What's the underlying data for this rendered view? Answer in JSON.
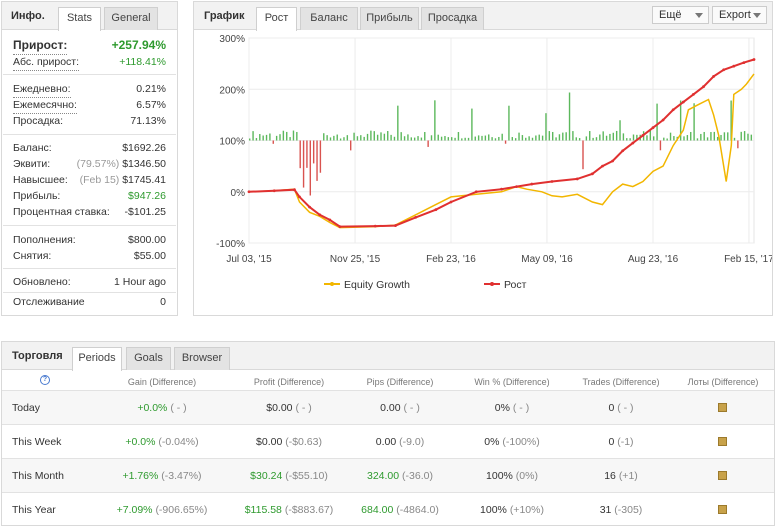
{
  "info": {
    "title": "Инфо.",
    "tabs": [
      "Stats",
      "General"
    ],
    "growth_label": "Прирост:",
    "growth_value": "+257.94%",
    "abs_label": "Абс. прирост:",
    "abs_value": "+118.41%",
    "daily_label": "Ежедневно:",
    "daily_value": "0.21%",
    "monthly_label": "Ежемесячно:",
    "monthly_value": "6.57%",
    "drawdown_label": "Просадка:",
    "drawdown_value": "71.13%",
    "balance_label": "Баланс:",
    "balance_value": "$1692.26",
    "equity_label": "Эквити:",
    "equity_pct": "(79.57%)",
    "equity_value": "$1346.50",
    "highest_label": "Навысшее:",
    "highest_date": "(Feb 15)",
    "highest_value": "$1745.41",
    "profit_label": "Прибыль:",
    "profit_value": "$947.26",
    "interest_label": "Процентная ставка:",
    "interest_value": "-$101.25",
    "deposits_label": "Пополнения:",
    "deposits_value": "$800.00",
    "withdrawals_label": "Снятия:",
    "withdrawals_value": "$55.00",
    "updated_label": "Обновлено:",
    "updated_value": "1 Hour ago",
    "tracking_label": "Отслеживание",
    "tracking_value": "0"
  },
  "chart_panel": {
    "title": "График",
    "tabs": [
      "Рост",
      "Баланс",
      "Прибыль",
      "Просадка"
    ],
    "more_btn": "Ещё",
    "export_btn": "Export"
  },
  "chart_data": {
    "type": "line",
    "yticks": [
      "300%",
      "200%",
      "100%",
      "0%",
      "-100%"
    ],
    "xticks": [
      "Jul 03, '15",
      "Nov 25, '15",
      "Feb 23, '16",
      "May 09, '16",
      "Aug 23, '16",
      "Feb 15, '17"
    ],
    "ylim": [
      -100,
      300
    ],
    "legend": "bottom",
    "colors": {
      "equity": "#f2b600",
      "growth": "#e03030",
      "bars_pos": "#5cb85c",
      "bars_neg": "#d9534f"
    },
    "series": [
      {
        "name": "Equity Growth",
        "values": [
          [
            0,
            0
          ],
          [
            0.05,
            2
          ],
          [
            0.09,
            5
          ],
          [
            0.1,
            -20
          ],
          [
            0.12,
            -40
          ],
          [
            0.14,
            -48
          ],
          [
            0.16,
            -60
          ],
          [
            0.18,
            -70
          ],
          [
            0.25,
            -68
          ],
          [
            0.29,
            -65
          ],
          [
            0.33,
            -45
          ],
          [
            0.37,
            -25
          ],
          [
            0.4,
            -10
          ],
          [
            0.45,
            -5
          ],
          [
            0.5,
            0
          ],
          [
            0.53,
            10
          ],
          [
            0.55,
            5
          ],
          [
            0.58,
            0
          ],
          [
            0.6,
            -8
          ],
          [
            0.62,
            -10
          ],
          [
            0.65,
            -5
          ],
          [
            0.68,
            -20
          ],
          [
            0.7,
            -25
          ],
          [
            0.72,
            0
          ],
          [
            0.74,
            15
          ],
          [
            0.76,
            10
          ],
          [
            0.78,
            20
          ],
          [
            0.8,
            40
          ],
          [
            0.82,
            50
          ],
          [
            0.84,
            90
          ],
          [
            0.86,
            120
          ],
          [
            0.87,
            160
          ],
          [
            0.89,
            170
          ],
          [
            0.91,
            180
          ],
          [
            0.92,
            150
          ],
          [
            0.93,
            110
          ],
          [
            0.945,
            20
          ],
          [
            0.955,
            90
          ],
          [
            0.96,
            190
          ],
          [
            0.975,
            200
          ],
          [
            0.985,
            210
          ],
          [
            1.0,
            230
          ]
        ]
      },
      {
        "name": "Рост",
        "values": [
          [
            0,
            0
          ],
          [
            0.05,
            2
          ],
          [
            0.09,
            4
          ],
          [
            0.1,
            -10
          ],
          [
            0.12,
            -30
          ],
          [
            0.14,
            -45
          ],
          [
            0.16,
            -55
          ],
          [
            0.18,
            -68
          ],
          [
            0.25,
            -67
          ],
          [
            0.29,
            -66
          ],
          [
            0.33,
            -50
          ],
          [
            0.37,
            -35
          ],
          [
            0.4,
            -20
          ],
          [
            0.45,
            0
          ],
          [
            0.5,
            5
          ],
          [
            0.53,
            10
          ],
          [
            0.56,
            15
          ],
          [
            0.6,
            20
          ],
          [
            0.65,
            25
          ],
          [
            0.68,
            35
          ],
          [
            0.7,
            50
          ],
          [
            0.72,
            60
          ],
          [
            0.74,
            80
          ],
          [
            0.76,
            95
          ],
          [
            0.78,
            110
          ],
          [
            0.8,
            125
          ],
          [
            0.82,
            140
          ],
          [
            0.84,
            160
          ],
          [
            0.86,
            175
          ],
          [
            0.88,
            190
          ],
          [
            0.9,
            205
          ],
          [
            0.92,
            225
          ],
          [
            0.94,
            238
          ],
          [
            0.96,
            245
          ],
          [
            0.98,
            252
          ],
          [
            1.0,
            258
          ]
        ]
      }
    ]
  },
  "trades": {
    "title": "Торговля",
    "tabs": [
      "Periods",
      "Goals",
      "Browser"
    ],
    "headers": [
      "Gain (Difference)",
      "Profit (Difference)",
      "Pips (Difference)",
      "Win % (Difference)",
      "Trades (Difference)",
      "Лоты (Difference)"
    ],
    "rows": [
      {
        "period": "Today",
        "gain": "+0.0%",
        "gain_diff": "( - )",
        "profit": "$0.00",
        "profit_diff": "( - )",
        "pips": "0.00",
        "pips_diff": "( - )",
        "win": "0%",
        "win_diff": "( - )",
        "trades": "0",
        "trades_diff": "( - )"
      },
      {
        "period": "This Week",
        "gain": "+0.0%",
        "gain_diff": "(-0.04%)",
        "profit": "$0.00",
        "profit_diff": "(-$0.63)",
        "pips": "0.00",
        "pips_diff": "(-9.0)",
        "win": "0%",
        "win_diff": "(-100%)",
        "trades": "0",
        "trades_diff": "(-1)"
      },
      {
        "period": "This Month",
        "gain": "+1.76%",
        "gain_diff": "(-3.47%)",
        "profit": "$30.24",
        "profit_diff": "(-$55.10)",
        "pips": "324.00",
        "pips_diff": "(-36.0)",
        "win": "100%",
        "win_diff": "(0%)",
        "trades": "16",
        "trades_diff": "(+1)"
      },
      {
        "period": "This Year",
        "gain": "+7.09%",
        "gain_diff": "(-906.65%)",
        "profit": "$115.58",
        "profit_diff": "(-$883.67)",
        "pips": "684.00",
        "pips_diff": "(-4864.0)",
        "win": "100%",
        "win_diff": "(+10%)",
        "trades": "31",
        "trades_diff": "(-305)"
      }
    ]
  }
}
